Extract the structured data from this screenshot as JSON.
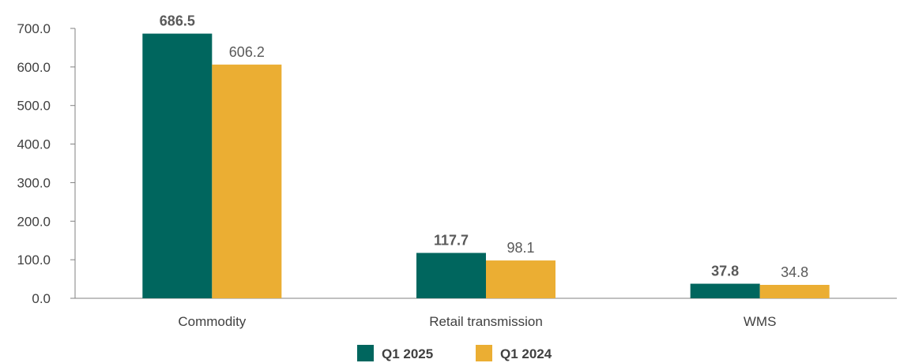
{
  "chart_data": {
    "type": "bar",
    "categories": [
      "Commodity",
      "Retail transmission",
      "WMS"
    ],
    "series": [
      {
        "name": "Q1 2025",
        "values": [
          686.5,
          117.7,
          37.8
        ],
        "color": "#00665E",
        "label_weight": "bold"
      },
      {
        "name": "Q1 2024",
        "values": [
          606.2,
          98.1,
          34.8
        ],
        "color": "#EBAE33",
        "label_weight": "normal"
      }
    ],
    "data_labels": [
      [
        "686.5",
        "117.7",
        "37.8"
      ],
      [
        "606.2",
        "98.1",
        "34.8"
      ]
    ],
    "y_ticks": [
      "0.0",
      "100.0",
      "200.0",
      "300.0",
      "400.0",
      "500.0",
      "600.0",
      "700.0"
    ],
    "ylim": [
      0,
      700
    ],
    "grid": false,
    "legend": "bottom-center",
    "title": "",
    "xlabel": "",
    "ylabel": ""
  }
}
